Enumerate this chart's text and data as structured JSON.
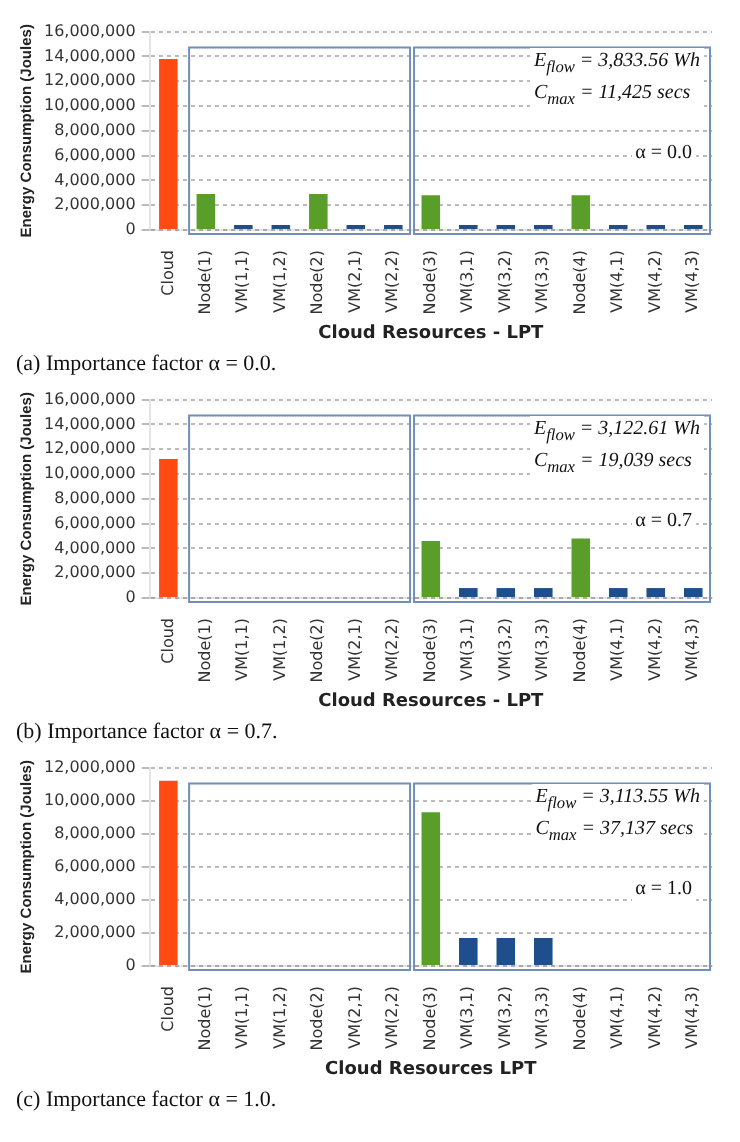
{
  "chart_data": [
    {
      "type": "bar",
      "xlabel": "Cloud Resources - LPT",
      "ylabel": "Energy Consumption (Joules)",
      "categories": [
        "Cloud",
        "Node(1)",
        "VM(1,1)",
        "VM(1,2)",
        "Node(2)",
        "VM(2,1)",
        "VM(2,2)",
        "Node(3)",
        "VM(3,1)",
        "VM(3,2)",
        "VM(3,3)",
        "Node(4)",
        "VM(4,1)",
        "VM(4,2)",
        "VM(4,3)"
      ],
      "values": [
        13800000,
        2900000,
        400000,
        400000,
        2900000,
        400000,
        400000,
        2800000,
        400000,
        400000,
        400000,
        2800000,
        400000,
        400000,
        400000
      ],
      "colors": [
        "#ff4a12",
        "#5a9e2a",
        "#1f4e8c",
        "#1f4e8c",
        "#5a9e2a",
        "#1f4e8c",
        "#1f4e8c",
        "#5a9e2a",
        "#1f4e8c",
        "#1f4e8c",
        "#1f4e8c",
        "#5a9e2a",
        "#1f4e8c",
        "#1f4e8c",
        "#1f4e8c"
      ],
      "ylim": [
        0,
        16000000
      ],
      "yticks": [
        {
          "value": 0,
          "label": "0"
        },
        {
          "value": 2000000,
          "label": "2,000,000"
        },
        {
          "value": 4000000,
          "label": "4,000,000"
        },
        {
          "value": 6000000,
          "label": "6,000,000"
        },
        {
          "value": 8000000,
          "label": "8,000,000"
        },
        {
          "value": 10000000,
          "label": "10,000,000"
        },
        {
          "value": 12000000,
          "label": "12,000,000"
        },
        {
          "value": 14000000,
          "label": "14,000,000"
        },
        {
          "value": 16000000,
          "label": "16,000,000"
        }
      ],
      "grid": "y",
      "annotations": [
        "E$_{flow}$ = 3,833.56 Wh",
        "C$_{max}$ = 11,425 secs",
        "α = 0.0",
        "(a) Importance factor α = 0.0."
      ]
    },
    {
      "type": "bar",
      "xlabel": "Cloud Resources - LPT",
      "ylabel": "Energy Consumption (Joules)",
      "categories": [
        "Cloud",
        "Node(1)",
        "VM(1,1)",
        "VM(1,2)",
        "Node(2)",
        "VM(2,1)",
        "VM(2,2)",
        "Node(3)",
        "VM(3,1)",
        "VM(3,2)",
        "VM(3,3)",
        "Node(4)",
        "VM(4,1)",
        "VM(4,2)",
        "VM(4,3)"
      ],
      "values": [
        11200000,
        0,
        0,
        0,
        0,
        0,
        0,
        4600000,
        800000,
        800000,
        800000,
        4800000,
        800000,
        800000,
        800000
      ],
      "colors": [
        "#ff4a12",
        "#5a9e2a",
        "#1f4e8c",
        "#1f4e8c",
        "#5a9e2a",
        "#1f4e8c",
        "#1f4e8c",
        "#5a9e2a",
        "#1f4e8c",
        "#1f4e8c",
        "#1f4e8c",
        "#5a9e2a",
        "#1f4e8c",
        "#1f4e8c",
        "#1f4e8c"
      ],
      "ylim": [
        0,
        16000000
      ],
      "yticks": [
        {
          "value": 0,
          "label": "0"
        },
        {
          "value": 2000000,
          "label": "2,000,000"
        },
        {
          "value": 4000000,
          "label": "4,000,000"
        },
        {
          "value": 6000000,
          "label": "6,000,000"
        },
        {
          "value": 8000000,
          "label": "8,000,000"
        },
        {
          "value": 10000000,
          "label": "10,000,000"
        },
        {
          "value": 12000000,
          "label": "12,000,000"
        },
        {
          "value": 14000000,
          "label": "14,000,000"
        },
        {
          "value": 16000000,
          "label": "16,000,000"
        }
      ],
      "grid": "y",
      "annotations": [
        "E$_{flow}$ = 3,122.61 Wh",
        "C$_{max}$ = 19,039 secs",
        "α = 0.7",
        "(b) Importance factor α = 0.7."
      ]
    },
    {
      "type": "bar",
      "xlabel": "Cloud Resources LPT",
      "ylabel": "Energy Consumption (Joules)",
      "categories": [
        "Cloud",
        "Node(1)",
        "VM(1,1)",
        "VM(1,2)",
        "Node(2)",
        "VM(2,1)",
        "VM(2,2)",
        "Node(3)",
        "VM(3,1)",
        "VM(3,2)",
        "VM(3,3)",
        "Node(4)",
        "VM(4,1)",
        "VM(4,2)",
        "VM(4,3)"
      ],
      "values": [
        11200000,
        0,
        0,
        0,
        0,
        0,
        0,
        9300000,
        1700000,
        1700000,
        1700000,
        0,
        0,
        0,
        0
      ],
      "colors": [
        "#ff4a12",
        "#5a9e2a",
        "#1f4e8c",
        "#1f4e8c",
        "#5a9e2a",
        "#1f4e8c",
        "#1f4e8c",
        "#5a9e2a",
        "#1f4e8c",
        "#1f4e8c",
        "#1f4e8c",
        "#5a9e2a",
        "#1f4e8c",
        "#1f4e8c",
        "#1f4e8c"
      ],
      "ylim": [
        0,
        12000000
      ],
      "yticks": [
        {
          "value": 0,
          "label": "0"
        },
        {
          "value": 2000000,
          "label": "2,000,000"
        },
        {
          "value": 4000000,
          "label": "4,000,000"
        },
        {
          "value": 6000000,
          "label": "6,000,000"
        },
        {
          "value": 8000000,
          "label": "8,000,000"
        },
        {
          "value": 10000000,
          "label": "10,000,000"
        },
        {
          "value": 12000000,
          "label": "12,000,000"
        }
      ],
      "grid": "y",
      "annotations": [
        "E$_{flow}$ = 3,113.55 Wh",
        "C$_{max}$ = 37,137 secs",
        "α = 1.0",
        "(c) Importance factor α = 1.0."
      ]
    }
  ]
}
